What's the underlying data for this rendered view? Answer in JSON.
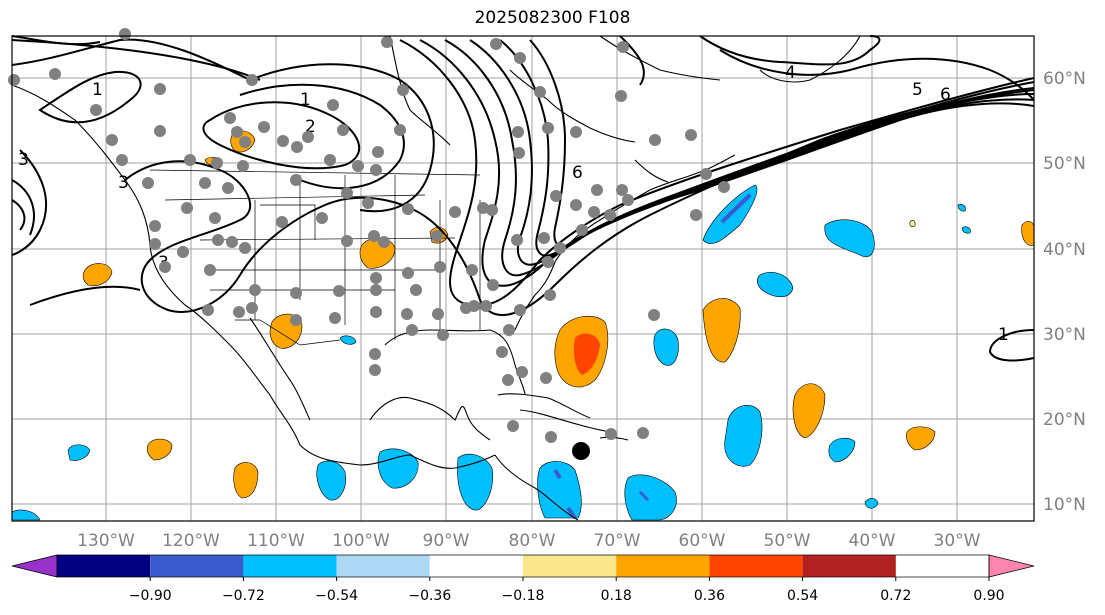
{
  "title": "2025082300 F108",
  "map": {
    "lon_labels": [
      "130°W",
      "120°W",
      "110°W",
      "100°W",
      "90°W",
      "80°W",
      "70°W",
      "60°W",
      "50°W",
      "40°W",
      "30°W"
    ],
    "lat_labels": [
      "60°N",
      "50°N",
      "40°N",
      "30°N",
      "20°N",
      "10°N"
    ],
    "grid": true,
    "storm_marker": {
      "lon": -73,
      "lat": 16.5
    },
    "contour_labels": [
      "1",
      "2",
      "3",
      "4",
      "5",
      "6"
    ]
  },
  "colorbar": {
    "ticks": [
      "−0.90",
      "−0.72",
      "−0.54",
      "−0.36",
      "−0.18",
      "0.18",
      "0.36",
      "0.54",
      "0.72",
      "0.90"
    ],
    "colors": [
      "#9932cc",
      "#000080",
      "#3a5bcd",
      "#00bfff",
      "#add8f5",
      "#ffffff",
      "#fce68c",
      "#ffa500",
      "#ff4500",
      "#b22222",
      "#ff85b0"
    ]
  }
}
